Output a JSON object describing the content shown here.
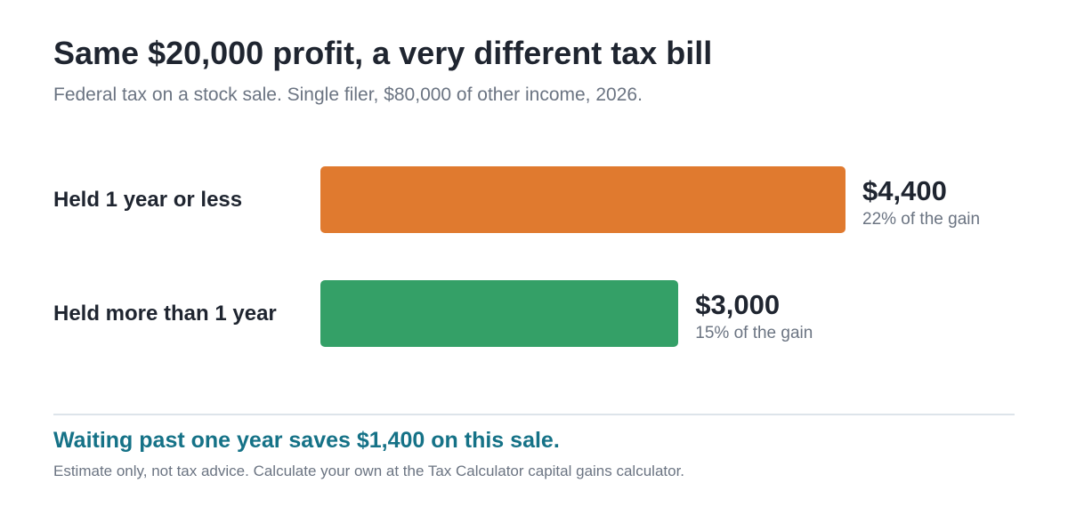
{
  "chart_data": {
    "type": "bar",
    "orientation": "horizontal",
    "title": "Same $20,000 profit, a very different tax bill",
    "subtitle": "Federal tax on a stock sale. Single filer, $80,000 of other income, 2026.",
    "categories": [
      "Held 1 year or less",
      "Held more than 1 year"
    ],
    "values": [
      4400,
      3000
    ],
    "value_labels": [
      "$4,400",
      "$3,000"
    ],
    "notes": [
      "22% of the gain",
      "15% of the gain"
    ],
    "colors": [
      "#e07a2f",
      "#34a067"
    ],
    "xlim": [
      0,
      4400
    ],
    "grid": false,
    "legend": false
  },
  "takeaway": "Waiting past one year saves $1,400 on this sale.",
  "footnote": "Estimate only, not tax advice. Calculate your own at the Tax Calculator capital gains calculator.",
  "colors": {
    "text": "#1f2530",
    "muted": "#6b7482",
    "accent": "#157287",
    "divider": "#dde4ea"
  }
}
